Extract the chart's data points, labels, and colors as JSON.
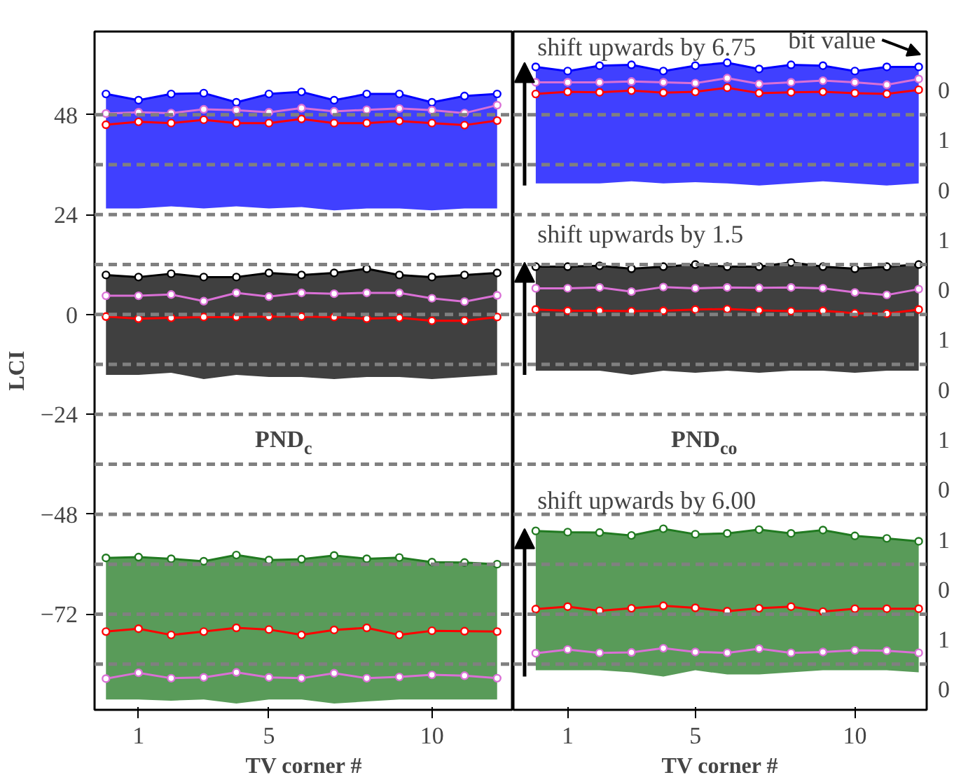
{
  "chart_data": [
    {
      "type": "line",
      "xlabel": "TV corner #",
      "ylabel": "LCI",
      "x": [
        0,
        1,
        2,
        3,
        4,
        5,
        6,
        7,
        8,
        9,
        10,
        11,
        12
      ],
      "xlim": [
        -0.35,
        12.5
      ],
      "xticks": [
        1,
        5,
        10
      ],
      "ylim": [
        -95,
        68
      ],
      "yticks": [
        -72,
        -48,
        -24,
        0,
        24,
        48
      ],
      "grid": false,
      "marker": "circle",
      "line_style": "solid",
      "series": [
        {
          "color": "#0000ff",
          "values": [
            53,
            51.5,
            53,
            53.2,
            51,
            53,
            53.5,
            51.5,
            53,
            53,
            51,
            52.5,
            53
          ],
          "upper": [
            53,
            51.5,
            53,
            53.2,
            51,
            53,
            53.5,
            51.5,
            53,
            53,
            51,
            52.5,
            53
          ],
          "lower": [
            25.5,
            25.5,
            26,
            25.5,
            26,
            25.5,
            25.8,
            25,
            25.5,
            25.5,
            25,
            25.5,
            25.5
          ]
        },
        {
          "color": "#000000",
          "values": [
            9.5,
            9,
            9.8,
            9,
            9,
            10,
            9.5,
            10,
            11,
            9.5,
            9,
            9.5,
            10
          ],
          "upper": [
            9.5,
            9,
            9.8,
            9,
            9,
            10,
            9.5,
            10,
            11,
            9.5,
            9,
            9.5,
            10
          ],
          "lower": [
            -14.5,
            -14.5,
            -14,
            -15.5,
            -14.5,
            -15,
            -15,
            -15.5,
            -15,
            -15,
            -15.5,
            -15,
            -14.5
          ]
        },
        {
          "color": "#217a21",
          "values": [
            -58.5,
            -58.3,
            -58.7,
            -59.3,
            -57.8,
            -59,
            -58.8,
            -57.9,
            -58.7,
            -58.4,
            -59.5,
            -59.6,
            -60
          ],
          "upper": [
            -58.5,
            -58.3,
            -58.7,
            -59.3,
            -57.8,
            -59,
            -58.8,
            -57.9,
            -58.7,
            -58.4,
            -59.5,
            -59.6,
            -60
          ],
          "lower": [
            -92.5,
            -92.5,
            -92.8,
            -92.5,
            -93.5,
            -92.5,
            -92.5,
            -93.5,
            -93,
            -92.5,
            -92.5,
            -92.5,
            -92.5
          ]
        },
        {
          "color": "#da70d6",
          "values": [
            48.3,
            48.6,
            48.4,
            49.3,
            49.1,
            48.6,
            49.6,
            48.8,
            49.2,
            49.5,
            49.1,
            48.4,
            50.3
          ]
        },
        {
          "color": "#ff0000",
          "values": [
            45.6,
            46.3,
            46,
            46.8,
            46,
            46,
            47,
            46,
            46,
            46.5,
            46,
            45.5,
            46.6
          ]
        },
        {
          "color": "#da70d6",
          "values": [
            4.5,
            4.5,
            4.8,
            3.2,
            5.2,
            4.3,
            5.2,
            5,
            5.2,
            5.2,
            3.9,
            3.1,
            4.6
          ]
        },
        {
          "color": "#ff0000",
          "values": [
            -0.5,
            -1,
            -0.8,
            -0.6,
            -0.6,
            -0.5,
            -0.5,
            -0.6,
            -1,
            -0.8,
            -1.5,
            -1.5,
            -0.6
          ]
        },
        {
          "color": "#ff0000",
          "values": [
            -76.2,
            -75.5,
            -77,
            -76.2,
            -75.3,
            -75.7,
            -77,
            -75.8,
            -75.3,
            -77,
            -76,
            -76.1,
            -76.2
          ]
        },
        {
          "color": "#da70d6",
          "values": [
            -87.5,
            -86.1,
            -87.4,
            -87.2,
            -86,
            -87.2,
            -87.4,
            -86.2,
            -87.4,
            -87.1,
            -86.6,
            -86.8,
            -87.4
          ]
        }
      ],
      "ref_lines": [
        {
          "axis": "y",
          "value": 48,
          "color": "#808080",
          "line_style": "dashed"
        },
        {
          "axis": "y",
          "value": 36,
          "color": "#808080",
          "line_style": "dashed"
        },
        {
          "axis": "y",
          "value": 24,
          "color": "#808080",
          "line_style": "dashed"
        },
        {
          "axis": "y",
          "value": 12,
          "color": "#808080",
          "line_style": "dashed"
        },
        {
          "axis": "y",
          "value": 0,
          "color": "#808080",
          "line_style": "dashed"
        },
        {
          "axis": "y",
          "value": -12,
          "color": "#808080",
          "line_style": "dashed"
        },
        {
          "axis": "y",
          "value": -24,
          "color": "#808080",
          "line_style": "dashed"
        },
        {
          "axis": "y",
          "value": -36,
          "color": "#808080",
          "line_style": "dashed"
        },
        {
          "axis": "y",
          "value": -48,
          "color": "#808080",
          "line_style": "dashed"
        },
        {
          "axis": "y",
          "value": -60,
          "color": "#808080",
          "line_style": "dashed"
        },
        {
          "axis": "y",
          "value": -72,
          "color": "#808080",
          "line_style": "dashed"
        },
        {
          "axis": "y",
          "value": -84,
          "color": "#808080",
          "line_style": "dashed"
        }
      ],
      "annotations": [
        "PND$_{c}$"
      ]
    },
    {
      "type": "line",
      "xlabel": "TV corner #",
      "x": [
        0,
        1,
        2,
        3,
        4,
        5,
        6,
        7,
        8,
        9,
        10,
        11,
        12
      ],
      "xlim": [
        -0.7,
        12.25
      ],
      "xticks": [
        1,
        5,
        10
      ],
      "ylim": [
        -95,
        68
      ],
      "grid": false,
      "marker": "circle",
      "line_style": "solid",
      "series": [
        {
          "color": "#0000ff",
          "values": [
            59.5,
            58.5,
            59.8,
            60,
            58.5,
            59.8,
            60.5,
            59,
            60,
            59.8,
            58.5,
            59.5,
            59.5
          ],
          "upper": [
            59.5,
            58.5,
            59.8,
            60,
            58.5,
            59.8,
            60.5,
            59,
            60,
            59.8,
            58.5,
            59.5,
            59.5
          ],
          "lower": [
            31.5,
            31.5,
            31.5,
            32,
            31.5,
            31.8,
            31.5,
            31,
            31.5,
            32,
            31.5,
            31,
            31.5
          ]
        },
        {
          "color": "#000000",
          "values": [
            11.5,
            11.5,
            11.7,
            11,
            11.5,
            12,
            11.5,
            11.5,
            12.5,
            11.5,
            11,
            11.5,
            12
          ],
          "upper": [
            11.5,
            11.5,
            11.7,
            11,
            11.5,
            12,
            11.5,
            11.5,
            12.5,
            11.5,
            11,
            11.5,
            12
          ],
          "lower": [
            -13.5,
            -13.5,
            -13.5,
            -14.5,
            -13.5,
            -14,
            -13.5,
            -14,
            -13.5,
            -13.5,
            -14,
            -13.5,
            -13.5
          ]
        },
        {
          "color": "#217a21",
          "values": [
            -52,
            -52.3,
            -52.4,
            -53.1,
            -51.5,
            -52.8,
            -52.6,
            -51.7,
            -52.6,
            -51.8,
            -53.2,
            -53.8,
            -54.5
          ],
          "upper": [
            -52,
            -52.3,
            -52.4,
            -53.1,
            -51.5,
            -52.8,
            -52.6,
            -51.7,
            -52.6,
            -51.8,
            -53.2,
            -53.8,
            -54.5
          ],
          "lower": [
            -85.5,
            -85.5,
            -85.5,
            -86,
            -87,
            -85.5,
            -86.5,
            -86.5,
            -86,
            -85.5,
            -85.5,
            -85.5,
            -86
          ]
        },
        {
          "color": "#da70d6",
          "values": [
            55.8,
            55.8,
            55.8,
            56,
            55.8,
            55.6,
            56.8,
            55.4,
            55.8,
            56.2,
            55.8,
            55.2,
            56.6
          ]
        },
        {
          "color": "#ff0000",
          "values": [
            53,
            53.5,
            53.4,
            53.8,
            53.3,
            53.5,
            54.5,
            53.2,
            53.4,
            53.5,
            53.2,
            53,
            54
          ]
        },
        {
          "color": "#da70d6",
          "values": [
            6.3,
            6.3,
            6.5,
            5.5,
            6.6,
            6.3,
            6.5,
            6.4,
            6.5,
            6.3,
            5.3,
            4.7,
            6.1
          ]
        },
        {
          "color": "#ff0000",
          "values": [
            1.2,
            0.9,
            0.9,
            0.8,
            0.9,
            1.2,
            1.3,
            1,
            0.8,
            0.9,
            0.3,
            0.2,
            1.2
          ]
        },
        {
          "color": "#ff0000",
          "values": [
            -70.8,
            -70.2,
            -71.2,
            -70.6,
            -70,
            -70.5,
            -71.3,
            -70.6,
            -70.2,
            -71.4,
            -70.7,
            -70.7,
            -70.7
          ]
        },
        {
          "color": "#da70d6",
          "values": [
            -81.4,
            -80.5,
            -81.3,
            -81.2,
            -80.2,
            -81.1,
            -81.3,
            -80.3,
            -81.3,
            -81.1,
            -80.7,
            -80.8,
            -81.3
          ]
        }
      ],
      "ref_lines": [
        {
          "axis": "y",
          "value": 48,
          "color": "#808080",
          "line_style": "dashed"
        },
        {
          "axis": "y",
          "value": 36,
          "color": "#808080",
          "line_style": "dashed"
        },
        {
          "axis": "y",
          "value": 24,
          "color": "#808080",
          "line_style": "dashed"
        },
        {
          "axis": "y",
          "value": 12,
          "color": "#808080",
          "line_style": "dashed"
        },
        {
          "axis": "y",
          "value": 0,
          "color": "#808080",
          "line_style": "dashed"
        },
        {
          "axis": "y",
          "value": -12,
          "color": "#808080",
          "line_style": "dashed"
        },
        {
          "axis": "y",
          "value": -24,
          "color": "#808080",
          "line_style": "dashed"
        },
        {
          "axis": "y",
          "value": -36,
          "color": "#808080",
          "line_style": "dashed"
        },
        {
          "axis": "y",
          "value": -48,
          "color": "#808080",
          "line_style": "dashed"
        },
        {
          "axis": "y",
          "value": -60,
          "color": "#808080",
          "line_style": "dashed"
        },
        {
          "axis": "y",
          "value": -72,
          "color": "#808080",
          "line_style": "dashed"
        },
        {
          "axis": "y",
          "value": -84,
          "color": "#808080",
          "line_style": "dashed"
        }
      ],
      "annotations": [
        "shift upwards by 6.75",
        "shift upwards by 1.5",
        "shift upwards by 6.00",
        "PND$_{co}$",
        "bit value",
        "0",
        "1",
        "0",
        "1",
        "0",
        "1",
        "0",
        "1",
        "0",
        "1",
        "0",
        "1",
        "0"
      ]
    }
  ]
}
